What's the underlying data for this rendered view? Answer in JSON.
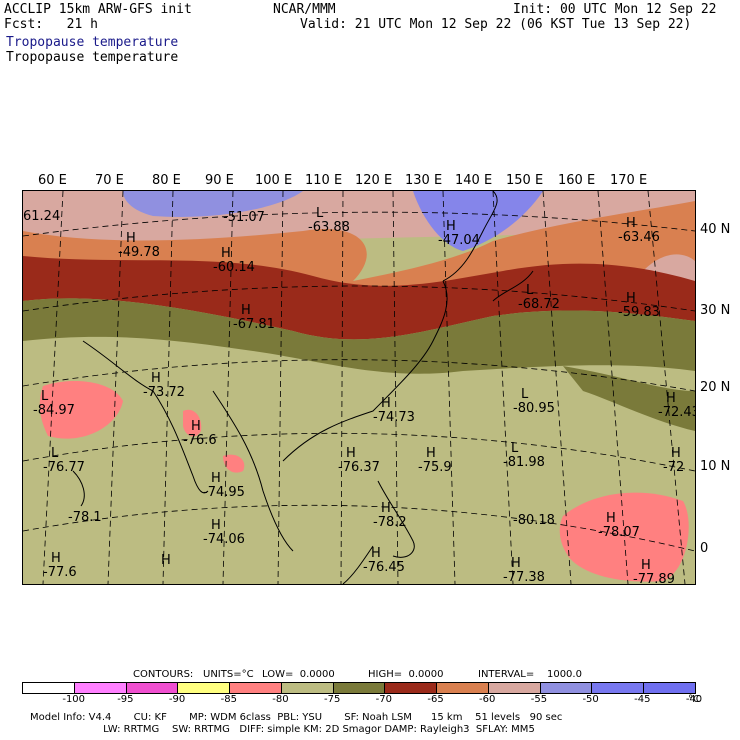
{
  "header": {
    "line1_left": "ACCLIP 15km ARW-GFS init",
    "line2_left": "Fcst:   21 h",
    "center": "NCAR/MMM",
    "init": "Init: 00 UTC Mon 12 Sep 22",
    "valid": "Valid: 21 UTC Mon 12 Sep 22 (06 KST Tue 13 Sep 22)",
    "field1": "Tropopause temperature",
    "field2": "Tropopause temperature"
  },
  "lon_labels": [
    "60 E",
    "70 E",
    "80 E",
    "90 E",
    "100 E",
    "110 E",
    "120 E",
    "130 E",
    "140 E",
    "150 E",
    "160 E",
    "170 E"
  ],
  "lat_labels": [
    "40 N",
    "30 N",
    "20 N",
    "10 N",
    "0"
  ],
  "map_labels": [
    {
      "type": "",
      "value": "61.24"
    },
    {
      "type": "",
      "value": "-51.07"
    },
    {
      "type": "L",
      "value": "-63.88"
    },
    {
      "type": "H",
      "value": "-47.04"
    },
    {
      "type": "H",
      "value": "-63.46"
    },
    {
      "type": "H",
      "value": "-49.78"
    },
    {
      "type": "H",
      "value": "-60.14"
    },
    {
      "type": "L",
      "value": "-68.72"
    },
    {
      "type": "H",
      "value": "-59.83"
    },
    {
      "type": "H",
      "value": "-67.81"
    },
    {
      "type": "H",
      "value": "-73.72"
    },
    {
      "type": "L",
      "value": "-84.97"
    },
    {
      "type": "H",
      "value": "-74.73"
    },
    {
      "type": "L",
      "value": "-80.95"
    },
    {
      "type": "H",
      "value": "-72.43"
    },
    {
      "type": "H",
      "value": "-76.6"
    },
    {
      "type": "L",
      "value": "-76.77"
    },
    {
      "type": "H",
      "value": "-76.37"
    },
    {
      "type": "H",
      "value": "-75.9"
    },
    {
      "type": "L",
      "value": "-81.98"
    },
    {
      "type": "H",
      "value": "-72"
    },
    {
      "type": "H",
      "value": "-74.95"
    },
    {
      "type": "",
      "value": "-78.1"
    },
    {
      "type": "H",
      "value": "-78.2"
    },
    {
      "type": "",
      "value": "-80.18"
    },
    {
      "type": "H",
      "value": "-78.07"
    },
    {
      "type": "H",
      "value": "-74.06"
    },
    {
      "type": "H",
      "value": "-77.6"
    },
    {
      "type": "H",
      "value": ""
    },
    {
      "type": "H",
      "value": "-76.45"
    },
    {
      "type": "H",
      "value": "-77.38"
    },
    {
      "type": "H",
      "value": "-77.89"
    }
  ],
  "contour_info": {
    "contours": "CONTOURS:",
    "units": "UNITS=°C",
    "low": "LOW=  0.0000",
    "high": "HIGH=  0.0000",
    "interval": "INTERVAL=    1000.0"
  },
  "legend": {
    "colors": [
      "#ffffff",
      "#ff80ff",
      "#f050d0",
      "#ffff80",
      "#ff8080",
      "#bcbc82",
      "#7a7a3a",
      "#9a2a1a",
      "#d98050",
      "#d8a8a0",
      "#9090e0",
      "#7878f0",
      "#7070f0"
    ],
    "ticks": [
      "-100",
      "-95",
      "-90",
      "-85",
      "-80",
      "-75",
      "-70",
      "-65",
      "-60",
      "-55",
      "-50",
      "-45",
      "-40",
      "°C"
    ]
  },
  "model_info": {
    "line1": "Model Info: V4.4       CU: KF       MP: WDM 6class  PBL: YSU       SF: Noah LSM      15 km    51 levels   90 sec",
    "line2": "                       LW: RRTMG    SW: RRTMG   DIFF: simple KM: 2D Smagor DAMP: Rayleigh3  SFLAY: MM5"
  }
}
